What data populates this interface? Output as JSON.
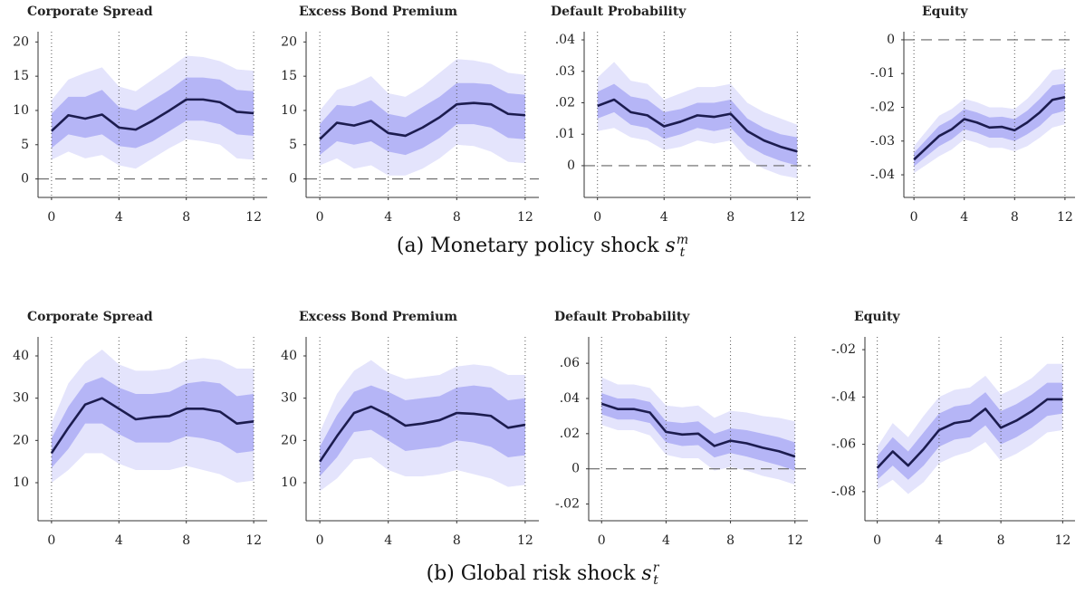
{
  "chart_data": [
    {
      "type": "line",
      "title": "Corporate Spread",
      "x": [
        0,
        1,
        2,
        3,
        4,
        5,
        6,
        7,
        8,
        9,
        10,
        11,
        12
      ],
      "xlim": [
        -0.8,
        12.8
      ],
      "xticks": [
        0,
        4,
        8,
        12
      ],
      "ylim": [
        -2.7,
        21.5
      ],
      "yticks": [
        0,
        5,
        10,
        15,
        20
      ],
      "zero_line": true,
      "grid_x": true,
      "bands": [
        {
          "color": "#e4e4fc",
          "lower": [
            2.8,
            4,
            3,
            3.5,
            2,
            1.5,
            3,
            4.5,
            5.8,
            5.5,
            5,
            3,
            2.8
          ],
          "upper": [
            11.5,
            14.5,
            15.5,
            16.3,
            13.5,
            12.8,
            14.5,
            16.2,
            18,
            17.8,
            17.2,
            16,
            15.8
          ]
        },
        {
          "color": "#b5b5f6",
          "lower": [
            4.5,
            6.5,
            6,
            6.5,
            4.8,
            4.5,
            5.5,
            7,
            8.5,
            8.5,
            8,
            6.5,
            6.3
          ],
          "upper": [
            9.5,
            12,
            12,
            13,
            10.5,
            10,
            11.5,
            13,
            14.8,
            14.8,
            14.5,
            13,
            12.8
          ]
        }
      ],
      "series": [
        {
          "color": "#1c1c4f",
          "values": [
            7,
            9.3,
            8.8,
            9.4,
            7.5,
            7.2,
            8.5,
            10,
            11.6,
            11.6,
            11.2,
            9.8,
            9.6
          ]
        }
      ]
    },
    {
      "type": "line",
      "title": "Excess Bond Premium",
      "x": [
        0,
        1,
        2,
        3,
        4,
        5,
        6,
        7,
        8,
        9,
        10,
        11,
        12
      ],
      "xlim": [
        -0.8,
        12.8
      ],
      "xticks": [
        0,
        4,
        8,
        12
      ],
      "ylim": [
        -2.7,
        21.5
      ],
      "yticks": [
        0,
        5,
        10,
        15,
        20
      ],
      "zero_line": true,
      "grid_x": true,
      "bands": [
        {
          "color": "#e4e4fc",
          "lower": [
            2,
            3,
            1.5,
            2,
            0.5,
            0.5,
            1.5,
            3,
            5,
            4.8,
            4,
            2.5,
            2.3
          ],
          "upper": [
            10,
            13,
            13.8,
            15,
            12.5,
            12,
            13.5,
            15.5,
            17.5,
            17.3,
            16.8,
            15.5,
            15.2
          ]
        },
        {
          "color": "#b5b5f6",
          "lower": [
            3.5,
            5.5,
            5,
            5.5,
            4,
            3.5,
            4.5,
            6,
            8,
            8,
            7.5,
            6,
            5.8
          ],
          "upper": [
            8,
            10.8,
            10.6,
            11.5,
            9.5,
            9,
            10.5,
            12,
            14,
            14,
            13.8,
            12.5,
            12.3
          ]
        }
      ],
      "series": [
        {
          "color": "#1c1c4f",
          "values": [
            5.8,
            8.2,
            7.8,
            8.5,
            6.7,
            6.3,
            7.5,
            9,
            10.9,
            11.1,
            10.9,
            9.5,
            9.3
          ]
        }
      ]
    },
    {
      "type": "line",
      "title": "Default Probability",
      "x": [
        0,
        1,
        2,
        3,
        4,
        5,
        6,
        7,
        8,
        9,
        10,
        11,
        12
      ],
      "xlim": [
        -0.8,
        12.8
      ],
      "xticks": [
        0,
        4,
        8,
        12
      ],
      "ylim": [
        -0.0101,
        0.0426
      ],
      "yticks": [
        0,
        {
          "value": 0.01,
          "label": ".01"
        },
        {
          "value": 0.02,
          "label": ".02"
        },
        {
          "value": 0.03,
          "label": ".03"
        },
        {
          "value": 0.04,
          "label": ".04"
        }
      ],
      "zero_line": true,
      "grid_x": true,
      "bands": [
        {
          "color": "#e4e4fc",
          "lower": [
            0.011,
            0.012,
            0.009,
            0.008,
            0.005,
            0.006,
            0.008,
            0.007,
            0.008,
            0.002,
            -0.001,
            -0.003,
            -0.004
          ],
          "upper": [
            0.028,
            0.033,
            0.027,
            0.026,
            0.021,
            0.023,
            0.025,
            0.025,
            0.026,
            0.02,
            0.017,
            0.015,
            0.013
          ]
        },
        {
          "color": "#b5b5f6",
          "lower": [
            0.015,
            0.017,
            0.013,
            0.012,
            0.0085,
            0.01,
            0.012,
            0.011,
            0.012,
            0.0065,
            0.0035,
            0.0015,
            0
          ],
          "upper": [
            0.0235,
            0.026,
            0.022,
            0.021,
            0.017,
            0.018,
            0.02,
            0.02,
            0.021,
            0.015,
            0.012,
            0.01,
            0.009
          ]
        }
      ],
      "series": [
        {
          "color": "#1c1c4f",
          "values": [
            0.019,
            0.021,
            0.017,
            0.016,
            0.0125,
            0.014,
            0.016,
            0.0155,
            0.0165,
            0.011,
            0.008,
            0.006,
            0.0045
          ]
        }
      ]
    },
    {
      "type": "line",
      "title": "Equity",
      "x": [
        0,
        1,
        2,
        3,
        4,
        5,
        6,
        7,
        8,
        9,
        10,
        11,
        12
      ],
      "xlim": [
        -0.8,
        12.8
      ],
      "xticks": [
        0,
        4,
        8,
        12
      ],
      "ylim": [
        -0.0467,
        0.0024
      ],
      "yticks": [
        0,
        {
          "value": -0.01,
          "label": "-.01"
        },
        {
          "value": -0.02,
          "label": "-.02"
        },
        {
          "value": -0.03,
          "label": "-.03"
        },
        {
          "value": -0.04,
          "label": "-.04"
        }
      ],
      "zero_line": true,
      "grid_x": true,
      "bands": [
        {
          "color": "#e4e4fc",
          "lower": [
            -0.0395,
            -0.037,
            -0.0345,
            -0.0325,
            -0.0295,
            -0.0305,
            -0.032,
            -0.032,
            -0.033,
            -0.0315,
            -0.029,
            -0.026,
            -0.025
          ],
          "upper": [
            -0.0315,
            -0.027,
            -0.0225,
            -0.0205,
            -0.0175,
            -0.0185,
            -0.02,
            -0.02,
            -0.0205,
            -0.0175,
            -0.0135,
            -0.009,
            -0.0085
          ]
        },
        {
          "color": "#b5b5f6",
          "lower": [
            -0.0375,
            -0.0345,
            -0.0315,
            -0.0295,
            -0.0265,
            -0.0275,
            -0.029,
            -0.029,
            -0.03,
            -0.028,
            -0.0255,
            -0.022,
            -0.021
          ],
          "upper": [
            -0.0335,
            -0.0295,
            -0.0255,
            -0.0235,
            -0.0205,
            -0.0215,
            -0.023,
            -0.0228,
            -0.0235,
            -0.021,
            -0.0175,
            -0.0135,
            -0.013
          ]
        }
      ],
      "series": [
        {
          "color": "#1c1c4f",
          "values": [
            -0.0355,
            -0.032,
            -0.0285,
            -0.0265,
            -0.0235,
            -0.0245,
            -0.026,
            -0.0258,
            -0.0268,
            -0.0245,
            -0.0215,
            -0.0178,
            -0.017
          ]
        }
      ]
    },
    {
      "type": "line",
      "title": "Corporate Spread",
      "x": [
        0,
        1,
        2,
        3,
        4,
        5,
        6,
        7,
        8,
        9,
        10,
        11,
        12
      ],
      "xlim": [
        -0.8,
        12.8
      ],
      "xticks": [
        0,
        4,
        8,
        12
      ],
      "ylim": [
        1,
        44.5
      ],
      "yticks": [
        10,
        20,
        30,
        40
      ],
      "zero_line": true,
      "grid_x": true,
      "bands": [
        {
          "color": "#e4e4fc",
          "lower": [
            10,
            13,
            17,
            17,
            14.5,
            13,
            13,
            13,
            14,
            13,
            12,
            10,
            10.5
          ],
          "upper": [
            24,
            33.5,
            38.5,
            41.5,
            38,
            36.5,
            36.5,
            37,
            39,
            39.5,
            39,
            37,
            37
          ]
        },
        {
          "color": "#b5b5f6",
          "lower": [
            13.5,
            18,
            24,
            24,
            21.5,
            19.5,
            19.5,
            19.5,
            21,
            20.5,
            19.5,
            17,
            17.5
          ],
          "upper": [
            20.5,
            28,
            33.5,
            35,
            32.5,
            31,
            31,
            31.5,
            33.5,
            34,
            33.5,
            30.5,
            31
          ]
        }
      ],
      "series": [
        {
          "color": "#1c1c4f",
          "values": [
            17,
            23,
            28.5,
            30,
            27.5,
            25,
            25.5,
            25.8,
            27.5,
            27.5,
            26.8,
            24,
            24.5
          ]
        }
      ]
    },
    {
      "type": "line",
      "title": "Excess Bond Premium",
      "x": [
        0,
        1,
        2,
        3,
        4,
        5,
        6,
        7,
        8,
        9,
        10,
        11,
        12
      ],
      "xlim": [
        -0.8,
        12.8
      ],
      "xticks": [
        0,
        4,
        8,
        12
      ],
      "ylim": [
        1,
        44.5
      ],
      "yticks": [
        10,
        20,
        30,
        40
      ],
      "zero_line": true,
      "grid_x": true,
      "bands": [
        {
          "color": "#e4e4fc",
          "lower": [
            8,
            11,
            15.5,
            16,
            13,
            11.5,
            11.5,
            12,
            13,
            12,
            11,
            9,
            9.5
          ],
          "upper": [
            22,
            31,
            36.5,
            39,
            36,
            34.5,
            35,
            35.5,
            37.5,
            38,
            37.5,
            35.5,
            35.5
          ]
        },
        {
          "color": "#b5b5f6",
          "lower": [
            11.5,
            16,
            22,
            22.5,
            20,
            17.5,
            18,
            18.5,
            20,
            19.5,
            18.5,
            16,
            16.5
          ],
          "upper": [
            18.5,
            26,
            31.5,
            33,
            31.5,
            29.5,
            30,
            30.5,
            32.5,
            33,
            32.5,
            29.5,
            30
          ]
        }
      ],
      "series": [
        {
          "color": "#1c1c4f",
          "values": [
            15,
            21,
            26.5,
            28,
            26,
            23.5,
            24,
            24.8,
            26.5,
            26.3,
            25.8,
            23,
            23.7
          ]
        }
      ]
    },
    {
      "type": "line",
      "title": "Default Probability",
      "x": [
        0,
        1,
        2,
        3,
        4,
        5,
        6,
        7,
        8,
        9,
        10,
        11,
        12
      ],
      "xlim": [
        -0.8,
        12.8
      ],
      "xticks": [
        0,
        4,
        8,
        12
      ],
      "ylim": [
        -0.0295,
        0.075
      ],
      "yticks": [
        {
          "value": -0.02,
          "label": "-.02"
        },
        0,
        {
          "value": 0.02,
          "label": ".02"
        },
        {
          "value": 0.04,
          "label": ".04"
        },
        {
          "value": 0.06,
          "label": ".06"
        }
      ],
      "zero_line": true,
      "grid_x": true,
      "bands": [
        {
          "color": "#e4e4fc",
          "lower": [
            0.025,
            0.022,
            0.022,
            0.019,
            0.008,
            0.006,
            0.006,
            -0.001,
            0.001,
            -0.001,
            -0.004,
            -0.006,
            -0.009
          ],
          "upper": [
            0.052,
            0.048,
            0.048,
            0.046,
            0.036,
            0.035,
            0.036,
            0.029,
            0.033,
            0.032,
            0.03,
            0.029,
            0.027
          ]
        },
        {
          "color": "#b5b5f6",
          "lower": [
            0.031,
            0.028,
            0.028,
            0.026,
            0.015,
            0.013,
            0.0135,
            0.0065,
            0.009,
            0.007,
            0.0045,
            0.002,
            -0.001
          ],
          "upper": [
            0.043,
            0.04,
            0.04,
            0.038,
            0.027,
            0.026,
            0.027,
            0.02,
            0.023,
            0.022,
            0.02,
            0.018,
            0.015
          ]
        }
      ],
      "series": [
        {
          "color": "#1c1c4f",
          "values": [
            0.037,
            0.034,
            0.034,
            0.032,
            0.021,
            0.0195,
            0.02,
            0.013,
            0.016,
            0.0145,
            0.012,
            0.01,
            0.007
          ]
        }
      ]
    },
    {
      "type": "line",
      "title": "Equity",
      "x": [
        0,
        1,
        2,
        3,
        4,
        5,
        6,
        7,
        8,
        9,
        10,
        11,
        12
      ],
      "xlim": [
        -0.8,
        12.8
      ],
      "xticks": [
        0,
        4,
        8,
        12
      ],
      "ylim": [
        -0.0923,
        -0.0146
      ],
      "yticks": [
        {
          "value": -0.08,
          "label": "-.08"
        },
        {
          "value": -0.06,
          "label": "-.06"
        },
        {
          "value": -0.04,
          "label": "-.04"
        },
        {
          "value": -0.02,
          "label": "-.02"
        }
      ],
      "zero_line": false,
      "grid_x": true,
      "bands": [
        {
          "color": "#e4e4fc",
          "lower": [
            -0.079,
            -0.075,
            -0.081,
            -0.076,
            -0.068,
            -0.065,
            -0.063,
            -0.059,
            -0.067,
            -0.064,
            -0.06,
            -0.055,
            -0.054
          ],
          "upper": [
            -0.061,
            -0.051,
            -0.057,
            -0.048,
            -0.04,
            -0.037,
            -0.036,
            -0.031,
            -0.039,
            -0.036,
            -0.032,
            -0.026,
            -0.026
          ]
        },
        {
          "color": "#b5b5f6",
          "lower": [
            -0.075,
            -0.069,
            -0.075,
            -0.069,
            -0.061,
            -0.058,
            -0.057,
            -0.052,
            -0.06,
            -0.057,
            -0.053,
            -0.048,
            -0.047
          ],
          "upper": [
            -0.065,
            -0.057,
            -0.063,
            -0.055,
            -0.047,
            -0.044,
            -0.043,
            -0.038,
            -0.046,
            -0.043,
            -0.039,
            -0.034,
            -0.034
          ]
        }
      ],
      "series": [
        {
          "color": "#1c1c4f",
          "values": [
            -0.07,
            -0.063,
            -0.069,
            -0.062,
            -0.054,
            -0.051,
            -0.05,
            -0.045,
            -0.053,
            -0.05,
            -0.046,
            -0.041,
            -0.041
          ]
        }
      ]
    }
  ],
  "captions": [
    {
      "text": "(a) Monetary policy shock",
      "symbol": "s",
      "sub": "t",
      "sup": "m"
    },
    {
      "text": "(b) Global risk shock",
      "symbol": "s",
      "sub": "t",
      "sup": "r"
    }
  ]
}
